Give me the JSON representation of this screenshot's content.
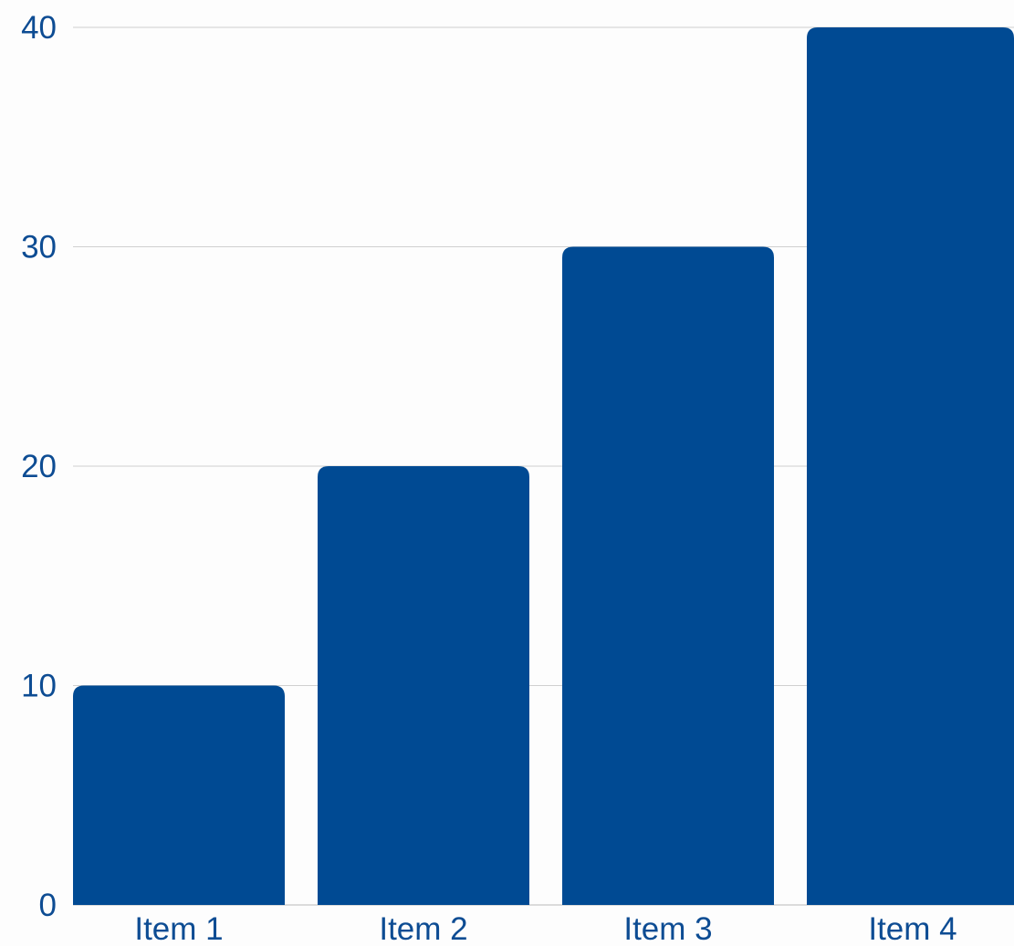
{
  "chart_data": {
    "type": "bar",
    "categories": [
      "Item 1",
      "Item 2",
      "Item 3",
      "Item 4"
    ],
    "values": [
      10,
      20,
      30,
      40
    ],
    "title": "",
    "xlabel": "",
    "ylabel": "",
    "ylim": [
      0,
      40
    ],
    "yticks": [
      "0",
      "10",
      "20",
      "30",
      "40"
    ],
    "grid": true,
    "legend": "none",
    "colors": {
      "bar": "#004a93",
      "text": "#0d4c93",
      "grid": "#d0d0d0",
      "background": "#fdfdfd"
    }
  }
}
